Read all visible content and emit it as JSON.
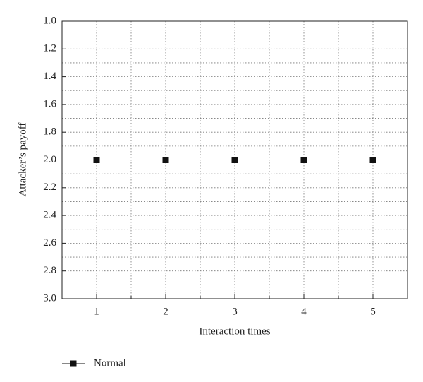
{
  "chart_data": {
    "type": "line",
    "xlabel": "Interaction times",
    "ylabel": "Attacker’s payoff",
    "x": [
      1,
      2,
      3,
      4,
      5
    ],
    "series": [
      {
        "name": "Normal",
        "color": "#111111",
        "marker": "square",
        "values": [
          2.0,
          2.0,
          2.0,
          2.0,
          2.0
        ]
      }
    ],
    "xlim": [
      0.5,
      5.5
    ],
    "xticks": [
      1,
      2,
      3,
      4,
      5
    ],
    "x_minor_ticks": [
      1.5,
      2.5,
      3.5,
      4.5
    ],
    "ylim": [
      1.0,
      3.0
    ],
    "y_inverted": true,
    "yticks": [
      {
        "value": 1,
        "label": "1.0"
      },
      1.2,
      1.4,
      1.6,
      1.8,
      {
        "value": 2,
        "label": "2.0"
      },
      2.2,
      2.4,
      2.6,
      2.8,
      {
        "value": 3,
        "label": "3.0"
      }
    ],
    "y_minor_ticks": [
      1.1,
      1.3,
      1.5,
      1.7,
      1.9,
      2.1,
      2.3,
      2.5,
      2.7,
      2.9
    ],
    "grid": true,
    "legend": "bottom-left"
  }
}
